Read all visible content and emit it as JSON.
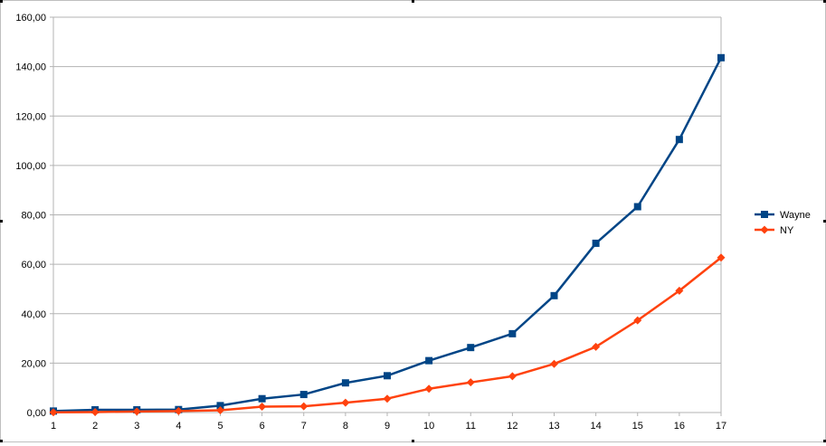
{
  "chart_data": {
    "type": "line",
    "title": "",
    "xlabel": "",
    "ylabel": "",
    "x": [
      1,
      2,
      3,
      4,
      5,
      6,
      7,
      8,
      9,
      10,
      11,
      12,
      13,
      14,
      15,
      16,
      17
    ],
    "x_tick_labels": [
      "1",
      "2",
      "3",
      "4",
      "5",
      "6",
      "7",
      "8",
      "9",
      "10",
      "11",
      "12",
      "13",
      "14",
      "15",
      "16",
      "17"
    ],
    "ylim": [
      0,
      160
    ],
    "y_ticks": [
      0,
      20,
      40,
      60,
      80,
      100,
      120,
      140,
      160
    ],
    "y_tick_labels": [
      "0,00",
      "20,00",
      "40,00",
      "60,00",
      "80,00",
      "100,00",
      "120,00",
      "140,00",
      "160,00"
    ],
    "grid": true,
    "legend_position": "right",
    "series": [
      {
        "name": "Wayne",
        "color": "#004586",
        "marker": "square",
        "values": [
          0.6,
          1.1,
          1.1,
          1.2,
          2.8,
          5.6,
          7.3,
          12.0,
          14.9,
          21.0,
          26.3,
          31.9,
          47.3,
          68.5,
          83.3,
          110.5,
          143.6
        ]
      },
      {
        "name": "NY",
        "color": "#ff420e",
        "marker": "diamond",
        "values": [
          0.1,
          0.2,
          0.4,
          0.6,
          0.9,
          2.4,
          2.5,
          4.0,
          5.6,
          9.6,
          12.2,
          14.7,
          19.7,
          26.6,
          37.3,
          49.3,
          62.7
        ]
      }
    ]
  }
}
